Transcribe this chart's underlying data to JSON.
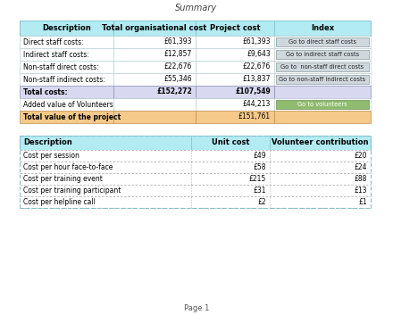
{
  "title": "Summary",
  "page_label": "Page 1",
  "bg_color": "#ffffff",
  "table1": {
    "headers": [
      "Description",
      "Total organisational cost",
      "Project cost",
      "Index"
    ],
    "header_bg": "#b2ebf2",
    "rows": [
      {
        "desc": "Direct staff costs:",
        "org_cost": "£61,393",
        "proj_cost": "£61,393",
        "index": "Go to direct staff costs",
        "index_bg": "#cfd8dc",
        "row_bg": "#ffffff"
      },
      {
        "desc": "Indirect staff costs:",
        "org_cost": "£12,857",
        "proj_cost": "£9,643",
        "index": "Go to indirect staff costs",
        "index_bg": "#cfd8dc",
        "row_bg": "#ffffff"
      },
      {
        "desc": "Non-staff direct costs:",
        "org_cost": "£22,676",
        "proj_cost": "£22,676",
        "index": "Go to  non-staff direct costs",
        "index_bg": "#cfd8dc",
        "row_bg": "#ffffff"
      },
      {
        "desc": "Non-staff indirect costs:",
        "org_cost": "£55,346",
        "proj_cost": "£13,837",
        "index": "Go to non-staff indirect costs",
        "index_bg": "#cfd8dc",
        "row_bg": "#ffffff"
      }
    ],
    "total_row": {
      "desc": "Total costs:",
      "org_cost": "£152,272",
      "proj_cost": "£107,549",
      "row_bg": "#d8d8f0"
    },
    "volunteer_row": {
      "desc": "Added value of Volunteers",
      "org_cost": "",
      "proj_cost": "£44,213",
      "index": "Go to volunteers",
      "index_bg": "#8fbc6f",
      "row_bg": "#ffffff"
    },
    "project_total_row": {
      "desc": "Total value of the project",
      "org_cost": "",
      "proj_cost": "£151,761",
      "row_bg": "#f5c98a"
    }
  },
  "table2": {
    "headers": [
      "Description",
      "Unit cost",
      "Volunteer contribution"
    ],
    "header_bg": "#b2ebf2",
    "rows": [
      {
        "desc": "Cost per session",
        "unit": "£49",
        "vol": "£20"
      },
      {
        "desc": "Cost per hour face-to-face",
        "unit": "£58",
        "vol": "£24"
      },
      {
        "desc": "Cost per training event",
        "unit": "£215",
        "vol": "£88"
      },
      {
        "desc": "Cost per training participant",
        "unit": "£31",
        "vol": "£13"
      },
      {
        "desc": "Cost per helpline call",
        "unit": "£2",
        "vol": "£1"
      }
    ]
  }
}
